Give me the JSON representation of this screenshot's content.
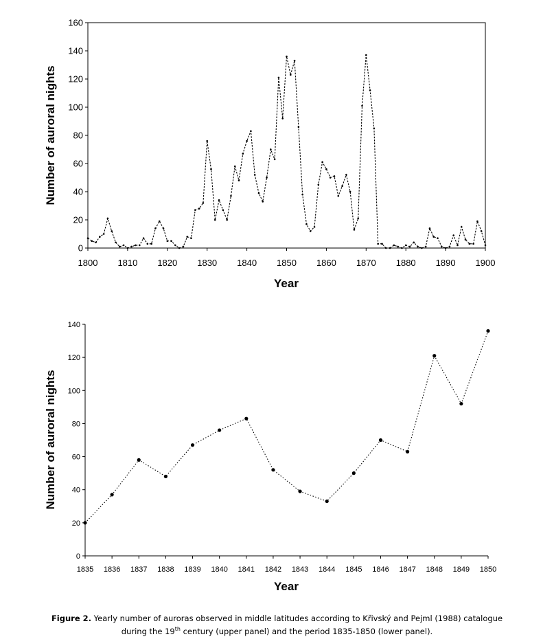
{
  "chart_data": [
    {
      "type": "line",
      "panel": "upper",
      "title": "",
      "xlabel": "Year",
      "ylabel": "Number of auroral nights",
      "xlim": [
        1800,
        1900
      ],
      "ylim": [
        0,
        160
      ],
      "xticks": [
        1800,
        1810,
        1820,
        1830,
        1840,
        1850,
        1860,
        1870,
        1880,
        1890,
        1900
      ],
      "yticks": [
        0,
        20,
        40,
        60,
        80,
        100,
        120,
        140,
        160
      ],
      "grid": false,
      "line_style": "dotted",
      "series": [
        {
          "name": "Auroral nights",
          "x": [
            1800,
            1801,
            1802,
            1803,
            1804,
            1805,
            1806,
            1807,
            1808,
            1809,
            1810,
            1811,
            1812,
            1813,
            1814,
            1815,
            1816,
            1817,
            1818,
            1819,
            1820,
            1821,
            1822,
            1823,
            1824,
            1825,
            1826,
            1827,
            1828,
            1829,
            1830,
            1831,
            1832,
            1833,
            1834,
            1835,
            1836,
            1837,
            1838,
            1839,
            1840,
            1841,
            1842,
            1843,
            1844,
            1845,
            1846,
            1847,
            1848,
            1849,
            1850,
            1851,
            1852,
            1853,
            1854,
            1855,
            1856,
            1857,
            1858,
            1859,
            1860,
            1861,
            1862,
            1863,
            1864,
            1865,
            1866,
            1867,
            1868,
            1869,
            1870,
            1871,
            1872,
            1873,
            1874,
            1875,
            1876,
            1877,
            1878,
            1879,
            1880,
            1881,
            1882,
            1883,
            1884,
            1885,
            1886,
            1887,
            1888,
            1889,
            1890,
            1891,
            1892,
            1893,
            1894,
            1895,
            1896,
            1897,
            1898,
            1899,
            1900
          ],
          "values": [
            7,
            5,
            4,
            8,
            10,
            21,
            12,
            4,
            1,
            2,
            0,
            1,
            2,
            2,
            7,
            3,
            3,
            14,
            19,
            14,
            5,
            5,
            2,
            0,
            1,
            8,
            7,
            27,
            28,
            32,
            76,
            56,
            20,
            34,
            27,
            20,
            37,
            58,
            48,
            67,
            76,
            83,
            52,
            39,
            33,
            50,
            70,
            63,
            121,
            92,
            136,
            123,
            133,
            86,
            38,
            17,
            12,
            15,
            45,
            61,
            56,
            50,
            51,
            37,
            44,
            52,
            40,
            13,
            21,
            101,
            137,
            112,
            85,
            3,
            3,
            0,
            0,
            2,
            1,
            0,
            2,
            1,
            4,
            1,
            0,
            1,
            14,
            8,
            7,
            1,
            0,
            1,
            9,
            2,
            15,
            6,
            3,
            3,
            19,
            12,
            2
          ]
        }
      ]
    },
    {
      "type": "line",
      "panel": "lower",
      "title": "",
      "xlabel": "Year",
      "ylabel": "Number of auroral nights",
      "ylim": [
        0,
        140
      ],
      "yticks": [
        0,
        20,
        40,
        60,
        80,
        100,
        120,
        140
      ],
      "categories": [
        "1835",
        "1836",
        "1837",
        "1838",
        "1839",
        "1840",
        "1841",
        "1842",
        "1843",
        "1844",
        "1845",
        "1846",
        "1847",
        "1848",
        "1849",
        "1850"
      ],
      "grid": false,
      "line_style": "dotted",
      "series": [
        {
          "name": "Auroral nights",
          "values": [
            20,
            37,
            58,
            48,
            67,
            76,
            83,
            52,
            39,
            33,
            50,
            70,
            63,
            121,
            92,
            136
          ]
        }
      ]
    }
  ],
  "caption": {
    "label": "Figure 2.",
    "text_line1": "Yearly number of auroras observed in middle latitudes according to Křivský and Pejml (1988) catalogue",
    "text_line2_pre": "during the 19",
    "text_line2_sup": "th",
    "text_line2_post": " century (upper panel) and the period 1835-1850 (lower panel)."
  }
}
